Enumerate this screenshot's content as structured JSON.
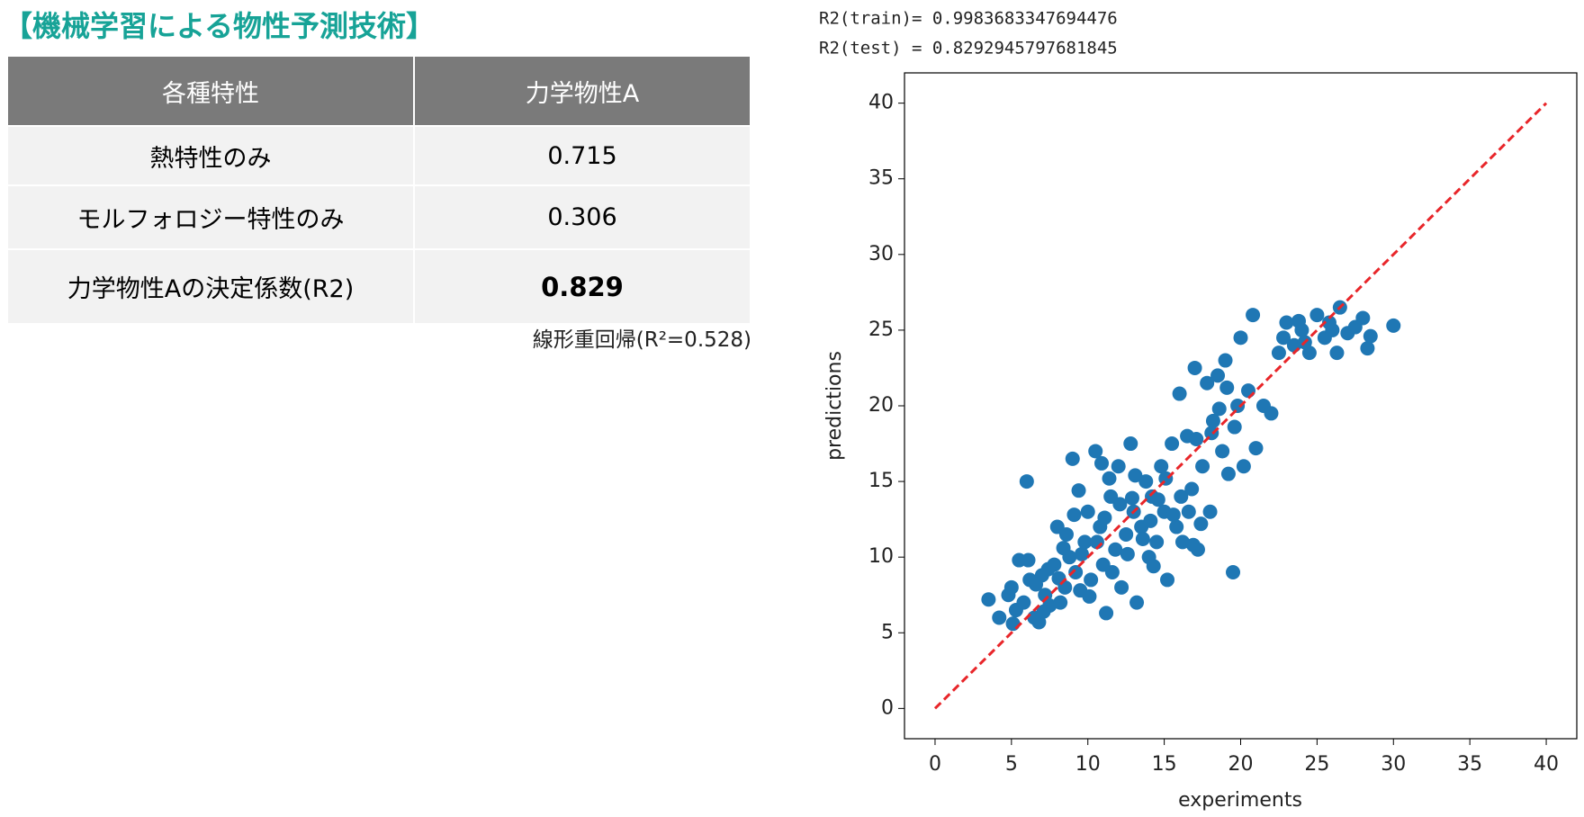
{
  "header": {
    "title": "【機械学習による物性予測技術】"
  },
  "table": {
    "header": [
      "各種特性",
      "力学物性A"
    ],
    "rows": [
      [
        "熱特性のみ",
        "0.715"
      ],
      [
        "モルフォロジー特性のみ",
        "0.306"
      ],
      [
        "力学物性Aの決定係数(R2)",
        "0.829"
      ]
    ],
    "note": "線形重回帰(R²=0.528)"
  },
  "chart_data": {
    "type": "scatter",
    "annotations": [
      "R2(train)= 0.9983683347694476",
      "R2(test) = 0.8292945797681845"
    ],
    "xlabel": "experiments",
    "ylabel": "predictions",
    "color": "#1f77b4",
    "x": [
      3.5,
      4.2,
      4.8,
      5,
      5.3,
      5.5,
      5.8,
      6,
      6.2,
      6.5,
      6.8,
      7,
      7.2,
      7.5,
      7.8,
      8,
      8.2,
      8.5,
      8.8,
      9,
      9.2,
      9.5,
      9.8,
      10,
      10.2,
      10.5,
      10.8,
      11,
      11.2,
      11.5,
      11.8,
      12,
      12.2,
      12.5,
      12.8,
      13,
      13.2,
      13.5,
      13.8,
      14,
      14.2,
      14.5,
      14.8,
      15,
      15.2,
      15.5,
      15.8,
      16,
      16.2,
      16.5,
      16.8,
      17,
      17.2,
      17.5,
      17.8,
      18,
      18.2,
      18.5,
      18.8,
      19,
      19.2,
      19.5,
      19.8,
      20,
      20.2,
      20.5,
      20.8,
      21,
      21.5,
      22,
      22.5,
      23,
      23.5,
      24,
      24.5,
      25,
      25.5,
      26,
      26.3,
      26.5,
      27,
      27.5,
      28,
      28.3,
      28.5,
      30,
      22.8,
      24.2,
      25.8,
      23.8,
      5.1,
      6.6,
      7.4,
      8.1,
      8.6,
      9.1,
      9.6,
      10.1,
      10.6,
      11.1,
      11.6,
      12.1,
      12.6,
      13.1,
      13.6,
      14.1,
      14.6,
      15.1,
      15.6,
      16.1,
      16.6,
      17.1,
      18.1,
      18.6,
      19.1,
      19.6,
      11.4,
      9.4,
      8.4,
      7.1,
      6.1,
      10.9,
      12.9,
      14.3,
      16.9,
      17.4
    ],
    "values": [
      7.2,
      6,
      7.5,
      8,
      6.5,
      9.8,
      7,
      15,
      8.5,
      6,
      5.7,
      8.8,
      7.5,
      6.8,
      9.5,
      12,
      7,
      8,
      10,
      16.5,
      9,
      7.8,
      11,
      13,
      8.5,
      17,
      12,
      9.5,
      6.3,
      14,
      10.5,
      16,
      8,
      11.5,
      17.5,
      13,
      7,
      12,
      15,
      10,
      14,
      11,
      16,
      13,
      8.5,
      17.5,
      12,
      20.8,
      11,
      18,
      14.5,
      22.5,
      10.5,
      16,
      21.5,
      13,
      19,
      22,
      17,
      23,
      15.5,
      9,
      20,
      24.5,
      16,
      21,
      26,
      17.2,
      20,
      19.5,
      23.5,
      25.5,
      24,
      25,
      23.5,
      26,
      24.5,
      25,
      23.5,
      26.5,
      24.8,
      25.2,
      25.8,
      23.8,
      24.6,
      25.3,
      24.5,
      24.2,
      25.5,
      25.6,
      5.6,
      8.2,
      9.2,
      8.6,
      11.5,
      12.8,
      10.2,
      7.4,
      11,
      12.6,
      9,
      13.5,
      10.2,
      15.4,
      11.2,
      12.4,
      13.8,
      15.2,
      12.8,
      14,
      13,
      17.8,
      18.2,
      19.8,
      21.2,
      18.6,
      15.2,
      14.4,
      10.6,
      6.4,
      9.8,
      16.2,
      13.9,
      9.4,
      10.8,
      12.2
    ],
    "reference_line": {
      "x": [
        0,
        40
      ],
      "values": [
        0,
        40
      ],
      "color": "#e8262a"
    },
    "xlim": [
      -2,
      42
    ],
    "ylim": [
      -2,
      42
    ],
    "xticks": [
      0,
      5,
      10,
      15,
      20,
      25,
      30,
      35,
      40
    ],
    "yticks": [
      0,
      5,
      10,
      15,
      20,
      25,
      30,
      35,
      40
    ]
  }
}
